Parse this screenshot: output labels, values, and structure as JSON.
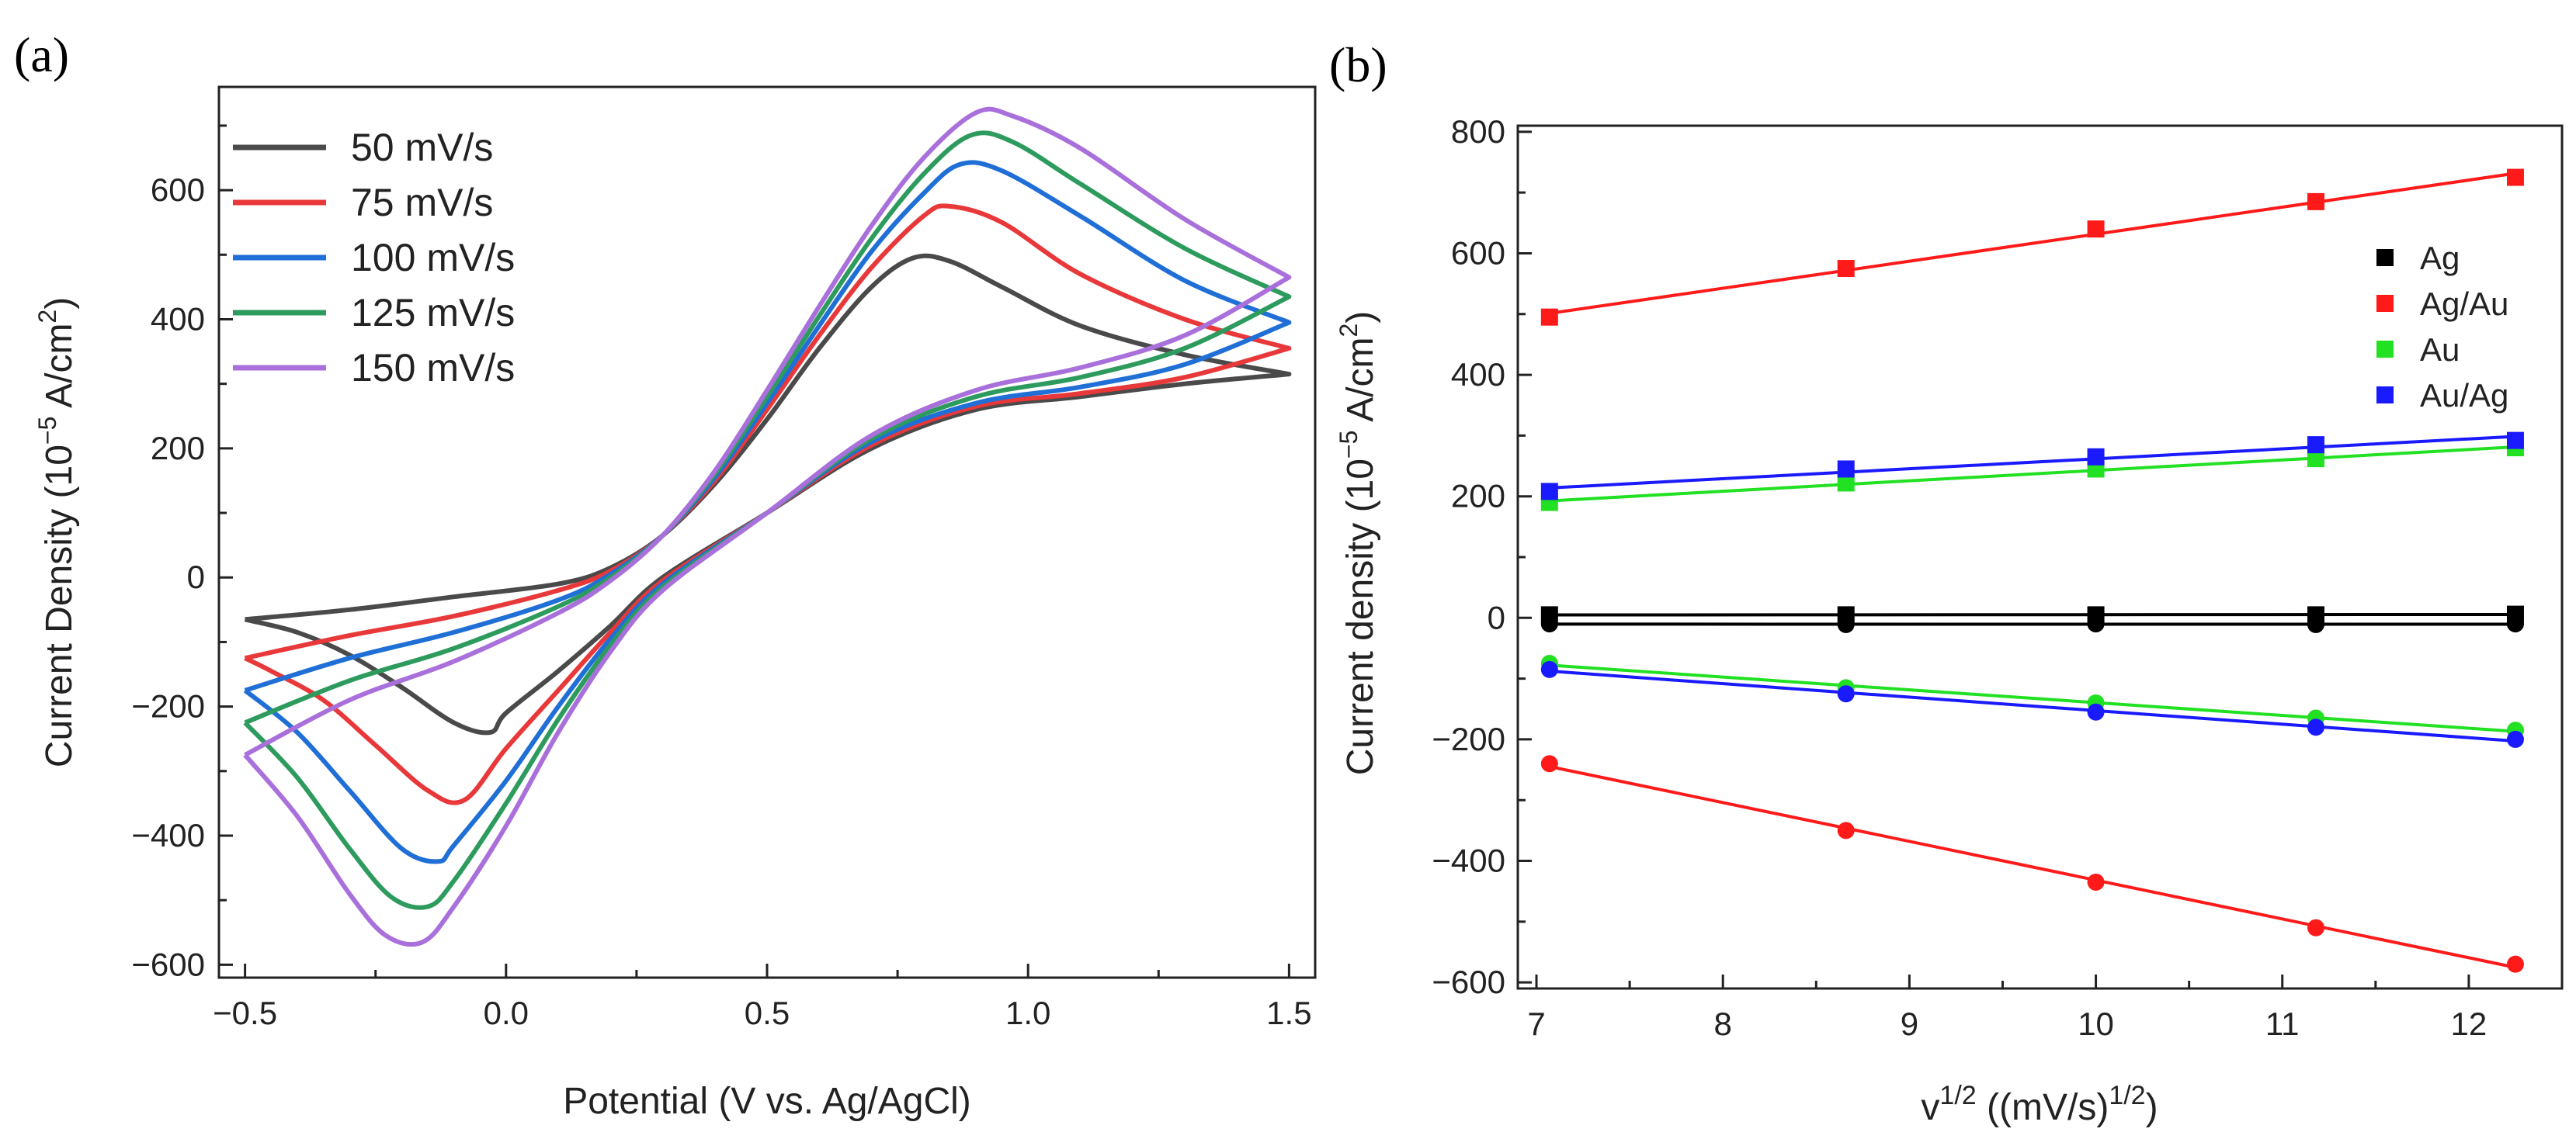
{
  "chart_data": [
    {
      "panel_label": "(a)",
      "type": "line",
      "subtype": "cyclic-voltammogram",
      "title": "",
      "xlabel": "Potential (V vs. Ag/AgCl)",
      "ylabel_main": "Current Density (10",
      "ylabel_exp": "−5",
      "ylabel_unit": " A/cm",
      "ylabel_sq": "2",
      "ylabel_close": ")",
      "xlim": [
        -0.55,
        1.55
      ],
      "ylim": [
        -620,
        760
      ],
      "xticks": [
        -0.5,
        0.0,
        0.5,
        1.0,
        1.5
      ],
      "xtick_labels": [
        "−0.5",
        "0.0",
        "0.5",
        "1.0",
        "1.5"
      ],
      "yticks": [
        -600,
        -400,
        -200,
        0,
        200,
        400,
        600
      ],
      "ytick_labels": [
        "−600",
        "−400",
        "−200",
        "0",
        "200",
        "400",
        "600"
      ],
      "legend_position": "top-left",
      "series": [
        {
          "name": "50 mV/s",
          "color": "#4a4a4a",
          "forward": [
            [
              -0.5,
              -65
            ],
            [
              -0.3,
              -50
            ],
            [
              -0.1,
              -30
            ],
            [
              0.1,
              -10
            ],
            [
              0.2,
              15
            ],
            [
              0.3,
              65
            ],
            [
              0.4,
              145
            ],
            [
              0.5,
              245
            ],
            [
              0.6,
              355
            ],
            [
              0.7,
              450
            ],
            [
              0.78,
              495
            ],
            [
              0.85,
              490
            ],
            [
              0.95,
              450
            ],
            [
              1.1,
              390
            ],
            [
              1.3,
              345
            ],
            [
              1.5,
              315
            ]
          ],
          "reverse": [
            [
              1.5,
              315
            ],
            [
              1.3,
              300
            ],
            [
              1.1,
              280
            ],
            [
              0.9,
              260
            ],
            [
              0.7,
              200
            ],
            [
              0.5,
              100
            ],
            [
              0.3,
              0
            ],
            [
              0.2,
              -75
            ],
            [
              0.1,
              -145
            ],
            [
              0.0,
              -210
            ],
            [
              -0.03,
              -240
            ],
            [
              -0.1,
              -225
            ],
            [
              -0.2,
              -170
            ],
            [
              -0.3,
              -120
            ],
            [
              -0.4,
              -85
            ],
            [
              -0.5,
              -65
            ]
          ]
        },
        {
          "name": "75 mV/s",
          "color": "#e8383a",
          "forward": [
            [
              -0.5,
              -125
            ],
            [
              -0.3,
              -90
            ],
            [
              -0.1,
              -60
            ],
            [
              0.1,
              -20
            ],
            [
              0.2,
              10
            ],
            [
              0.3,
              65
            ],
            [
              0.4,
              150
            ],
            [
              0.5,
              260
            ],
            [
              0.6,
              375
            ],
            [
              0.7,
              480
            ],
            [
              0.8,
              560
            ],
            [
              0.85,
              575
            ],
            [
              0.95,
              550
            ],
            [
              1.1,
              470
            ],
            [
              1.3,
              400
            ],
            [
              1.5,
              355
            ]
          ],
          "reverse": [
            [
              1.5,
              355
            ],
            [
              1.3,
              310
            ],
            [
              1.1,
              285
            ],
            [
              0.9,
              265
            ],
            [
              0.7,
              205
            ],
            [
              0.5,
              100
            ],
            [
              0.3,
              -5
            ],
            [
              0.2,
              -85
            ],
            [
              0.1,
              -175
            ],
            [
              0.0,
              -265
            ],
            [
              -0.08,
              -345
            ],
            [
              -0.15,
              -330
            ],
            [
              -0.25,
              -260
            ],
            [
              -0.35,
              -190
            ],
            [
              -0.45,
              -145
            ],
            [
              -0.5,
              -125
            ]
          ]
        },
        {
          "name": "100 mV/s",
          "color": "#1f6fd6",
          "forward": [
            [
              -0.5,
              -175
            ],
            [
              -0.3,
              -125
            ],
            [
              -0.1,
              -85
            ],
            [
              0.1,
              -35
            ],
            [
              0.2,
              5
            ],
            [
              0.3,
              65
            ],
            [
              0.4,
              155
            ],
            [
              0.5,
              270
            ],
            [
              0.6,
              390
            ],
            [
              0.7,
              505
            ],
            [
              0.8,
              595
            ],
            [
              0.87,
              640
            ],
            [
              0.95,
              630
            ],
            [
              1.1,
              560
            ],
            [
              1.3,
              460
            ],
            [
              1.5,
              395
            ]
          ],
          "reverse": [
            [
              1.5,
              395
            ],
            [
              1.3,
              330
            ],
            [
              1.1,
              295
            ],
            [
              0.9,
              270
            ],
            [
              0.7,
              210
            ],
            [
              0.5,
              100
            ],
            [
              0.3,
              -10
            ],
            [
              0.2,
              -95
            ],
            [
              0.1,
              -200
            ],
            [
              0.0,
              -315
            ],
            [
              -0.1,
              -415
            ],
            [
              -0.13,
              -440
            ],
            [
              -0.2,
              -420
            ],
            [
              -0.3,
              -330
            ],
            [
              -0.4,
              -240
            ],
            [
              -0.5,
              -175
            ]
          ]
        },
        {
          "name": "125 mV/s",
          "color": "#2e9b5e",
          "forward": [
            [
              -0.5,
              -225
            ],
            [
              -0.3,
              -160
            ],
            [
              -0.1,
              -110
            ],
            [
              0.1,
              -45
            ],
            [
              0.2,
              0
            ],
            [
              0.3,
              65
            ],
            [
              0.4,
              160
            ],
            [
              0.5,
              280
            ],
            [
              0.6,
              405
            ],
            [
              0.7,
              525
            ],
            [
              0.8,
              625
            ],
            [
              0.89,
              685
            ],
            [
              0.97,
              675
            ],
            [
              1.1,
              610
            ],
            [
              1.3,
              510
            ],
            [
              1.5,
              435
            ]
          ],
          "reverse": [
            [
              1.5,
              435
            ],
            [
              1.3,
              355
            ],
            [
              1.1,
              310
            ],
            [
              0.9,
              280
            ],
            [
              0.7,
              215
            ],
            [
              0.5,
              100
            ],
            [
              0.3,
              -15
            ],
            [
              0.2,
              -105
            ],
            [
              0.1,
              -220
            ],
            [
              0.0,
              -350
            ],
            [
              -0.1,
              -470
            ],
            [
              -0.15,
              -510
            ],
            [
              -0.22,
              -495
            ],
            [
              -0.3,
              -420
            ],
            [
              -0.4,
              -310
            ],
            [
              -0.5,
              -225
            ]
          ]
        },
        {
          "name": "150 mV/s",
          "color": "#a970db",
          "forward": [
            [
              -0.5,
              -275
            ],
            [
              -0.3,
              -190
            ],
            [
              -0.1,
              -130
            ],
            [
              0.1,
              -55
            ],
            [
              0.2,
              -5
            ],
            [
              0.3,
              65
            ],
            [
              0.4,
              165
            ],
            [
              0.5,
              290
            ],
            [
              0.6,
              420
            ],
            [
              0.7,
              545
            ],
            [
              0.8,
              650
            ],
            [
              0.9,
              720
            ],
            [
              0.97,
              715
            ],
            [
              1.1,
              665
            ],
            [
              1.3,
              555
            ],
            [
              1.5,
              465
            ]
          ],
          "reverse": [
            [
              1.5,
              465
            ],
            [
              1.3,
              375
            ],
            [
              1.1,
              325
            ],
            [
              0.9,
              290
            ],
            [
              0.7,
              220
            ],
            [
              0.5,
              100
            ],
            [
              0.3,
              -20
            ],
            [
              0.2,
              -115
            ],
            [
              0.1,
              -240
            ],
            [
              0.0,
              -385
            ],
            [
              -0.1,
              -510
            ],
            [
              -0.16,
              -565
            ],
            [
              -0.23,
              -555
            ],
            [
              -0.3,
              -490
            ],
            [
              -0.4,
              -370
            ],
            [
              -0.5,
              -275
            ]
          ]
        }
      ]
    },
    {
      "panel_label": "(b)",
      "type": "scatter",
      "subtype": "scatter-with-linear-fits",
      "title": "",
      "xlabel_main": "v",
      "xlabel_exp1": "1/2",
      "xlabel_mid": " ((mV/s)",
      "xlabel_exp2": "1/2",
      "xlabel_close": ")",
      "ylabel_main": "Current density (10",
      "ylabel_exp": "−5",
      "ylabel_unit": " A/cm",
      "ylabel_sq": "2",
      "ylabel_close": ")",
      "xlim": [
        6.9,
        12.5
      ],
      "ylim": [
        -610,
        810
      ],
      "xticks": [
        7,
        8,
        9,
        10,
        11,
        12
      ],
      "xtick_labels": [
        "7",
        "8",
        "9",
        "10",
        "11",
        "12"
      ],
      "yticks": [
        -600,
        -400,
        -200,
        0,
        200,
        400,
        600,
        800
      ],
      "ytick_labels": [
        "−600",
        "−400",
        "−200",
        "0",
        "200",
        "400",
        "600",
        "800"
      ],
      "legend_position": "top-right",
      "x": [
        7.07,
        8.66,
        10.0,
        11.18,
        12.25
      ],
      "series": [
        {
          "name": "Ag",
          "color": "#000000",
          "anodic": [
            5,
            5,
            5,
            5,
            6
          ],
          "cathodic": [
            -10,
            -11,
            -10,
            -11,
            -10
          ]
        },
        {
          "name": "Ag/Au",
          "color": "#ff1a1a",
          "anodic": [
            495,
            575,
            640,
            685,
            725
          ],
          "cathodic": [
            -240,
            -350,
            -435,
            -510,
            -570
          ]
        },
        {
          "name": "Au",
          "color": "#22e022",
          "anodic": [
            190,
            222,
            245,
            262,
            280
          ],
          "cathodic": [
            -75,
            -115,
            -140,
            -165,
            -185
          ]
        },
        {
          "name": "Au/Ag",
          "color": "#1a1aff",
          "anodic": [
            208,
            245,
            265,
            285,
            292
          ],
          "cathodic": [
            -85,
            -125,
            -155,
            -180,
            -200
          ]
        }
      ]
    }
  ]
}
